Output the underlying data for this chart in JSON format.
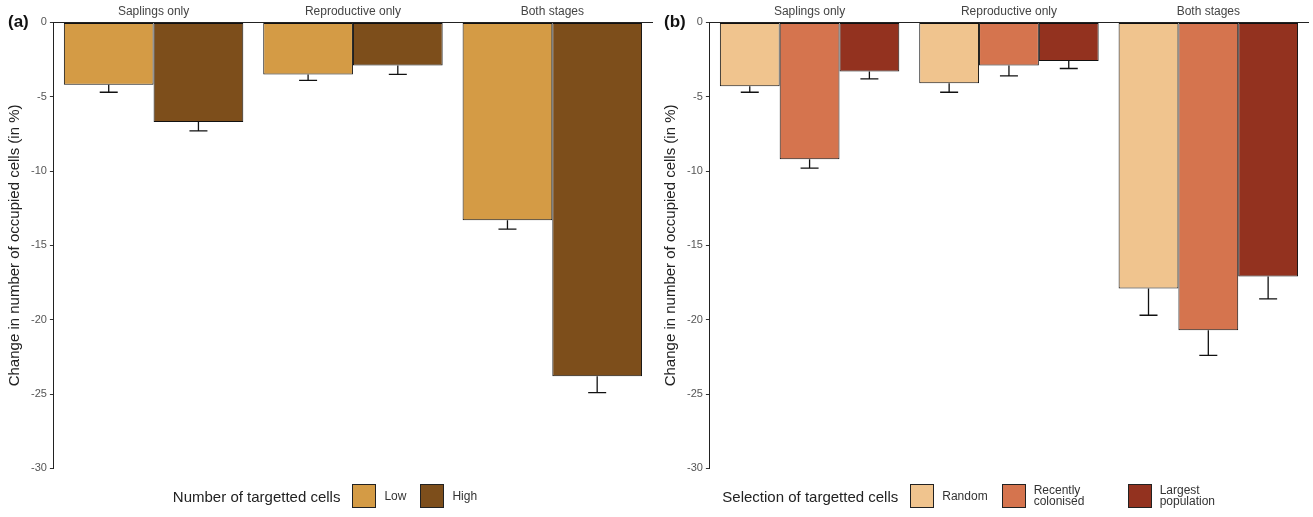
{
  "chart_data": [
    {
      "type": "bar",
      "title": "(a)",
      "ylabel": "Change in number of occupied cells (in %)",
      "legend_title": "Number of targetted cells",
      "categories": [
        "Saplings only",
        "Reproductive only",
        "Both stages"
      ],
      "ylim": [
        -30,
        0
      ],
      "yticks": [
        0,
        -5,
        -10,
        -15,
        -20,
        -25,
        -30
      ],
      "grid": false,
      "legend": "bottom",
      "series": [
        {
          "name": "Low",
          "color": "#d49b45",
          "values": [
            -4.2,
            -3.5,
            -13.3
          ],
          "errors": [
            [
              -4.7,
              -4.2
            ],
            [
              -3.9,
              -3.5
            ],
            [
              -13.9,
              -13.3
            ]
          ]
        },
        {
          "name": "High",
          "color": "#7d4e1b",
          "values": [
            -6.7,
            -2.9,
            -23.8
          ],
          "errors": [
            [
              -7.3,
              -6.7
            ],
            [
              -3.5,
              -2.9
            ],
            [
              -24.9,
              -23.8
            ]
          ]
        }
      ]
    },
    {
      "type": "bar",
      "title": "(b)",
      "ylabel": "Change in number of occupied cells (in %)",
      "legend_title": "Selection of targetted cells",
      "categories": [
        "Saplings only",
        "Reproductive only",
        "Both stages"
      ],
      "ylim": [
        -30,
        0
      ],
      "yticks": [
        0,
        -5,
        -10,
        -15,
        -20,
        -25,
        -30
      ],
      "grid": false,
      "legend": "bottom",
      "series": [
        {
          "name": "Random",
          "color": "#f0c48e",
          "values": [
            -4.3,
            -4.1,
            -17.9
          ],
          "errors": [
            [
              -4.7,
              -4.3
            ],
            [
              -4.7,
              -4.1
            ],
            [
              -19.7,
              -17.9
            ]
          ]
        },
        {
          "name": "Recently colonised",
          "color": "#d5744e",
          "values": [
            -9.2,
            -2.9,
            -20.7
          ],
          "errors": [
            [
              -9.8,
              -9.2
            ],
            [
              -3.6,
              -2.9
            ],
            [
              -22.4,
              -20.7
            ]
          ]
        },
        {
          "name": "Largest population",
          "color": "#93321f",
          "values": [
            -3.3,
            -2.6,
            -17.1
          ],
          "errors": [
            [
              -3.8,
              -3.3
            ],
            [
              -3.1,
              -2.6
            ],
            [
              -18.6,
              -17.1
            ]
          ]
        }
      ]
    }
  ]
}
